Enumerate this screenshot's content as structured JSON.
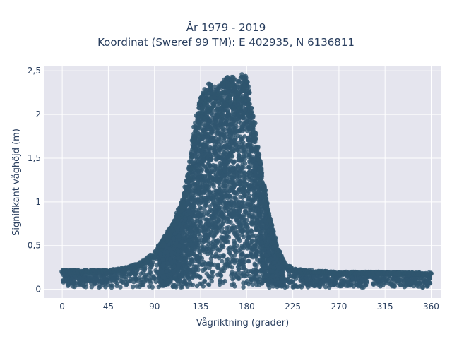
{
  "chart_data": {
    "type": "scatter",
    "title_line1": "År 1979 - 2019",
    "title_line2": "Koordinat (Sweref 99 TM): E 402935, N 6136811",
    "xlabel": "Vågriktning (grader)",
    "ylabel": "Signifikant våghöjd (m)",
    "xlim": [
      -18,
      370
    ],
    "ylim": [
      -0.1,
      2.55
    ],
    "xticks": [
      0,
      45,
      90,
      135,
      180,
      225,
      270,
      315,
      360
    ],
    "xtick_labels": [
      "0",
      "45",
      "90",
      "135",
      "180",
      "225",
      "270",
      "315",
      "360"
    ],
    "yticks": [
      0,
      0.5,
      1,
      1.5,
      2,
      2.5
    ],
    "ytick_labels": [
      "0",
      "0,5",
      "1",
      "1,5",
      "2",
      "2,5"
    ],
    "grid": true,
    "marker_color": "#2f566f",
    "plot_background": "#e5e5ee",
    "envelope": {
      "direction": [
        0,
        45,
        60,
        75,
        90,
        100,
        110,
        118,
        125,
        130,
        135,
        140,
        145,
        150,
        155,
        160,
        165,
        170,
        175,
        180,
        185,
        190,
        195,
        200,
        205,
        210,
        215,
        220,
        225,
        240,
        270,
        315,
        360
      ],
      "max_height": [
        0.22,
        0.22,
        0.25,
        0.3,
        0.42,
        0.6,
        0.8,
        1.05,
        1.5,
        1.95,
        2.2,
        2.32,
        2.38,
        2.3,
        2.35,
        2.43,
        2.45,
        2.4,
        2.46,
        2.45,
        2.1,
        1.72,
        1.35,
        1.0,
        0.7,
        0.48,
        0.35,
        0.28,
        0.24,
        0.22,
        0.2,
        0.2,
        0.19
      ],
      "min_height": 0.02
    }
  }
}
